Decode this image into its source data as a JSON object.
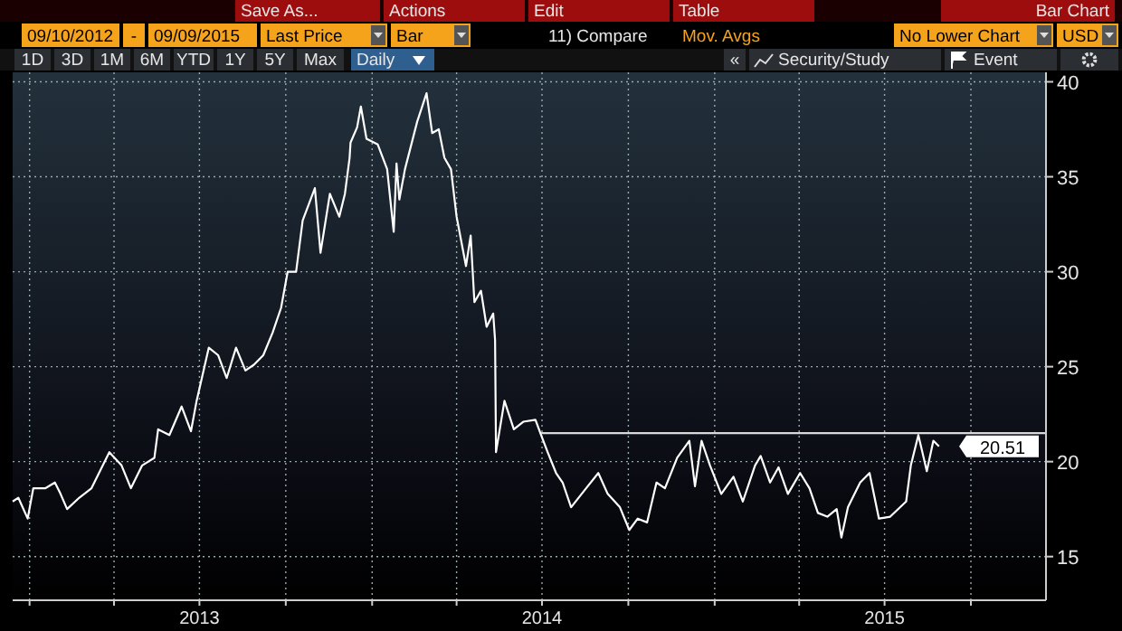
{
  "chart_data": {
    "type": "line",
    "xlim": [
      "2012-12-14",
      "2015-12-20"
    ],
    "ylim": [
      12.7,
      40.5
    ],
    "yticks": [
      15,
      20,
      25,
      30,
      35,
      40
    ],
    "xticks": [
      {
        "value": "2013-01-01",
        "label": null
      },
      {
        "value": "2013-04-01",
        "label": null
      },
      {
        "value": "2013-07-01",
        "label": "2013"
      },
      {
        "value": "2013-10-01",
        "label": null
      },
      {
        "value": "2014-01-01",
        "label": null
      },
      {
        "value": "2014-04-01",
        "label": null
      },
      {
        "value": "2014-07-01",
        "label": "2014"
      },
      {
        "value": "2014-10-01",
        "label": null
      },
      {
        "value": "2015-01-01",
        "label": null
      },
      {
        "value": "2015-04-01",
        "label": null
      },
      {
        "value": "2015-07-01",
        "label": "2015"
      },
      {
        "value": "2015-10-01",
        "label": null
      }
    ],
    "grid": true,
    "series": [
      {
        "color": "#ffffff",
        "x": [
          "2012-12-14",
          "2012-12-20",
          "2012-12-30",
          "2013-01-05",
          "2013-01-18",
          "2013-01-28",
          "2013-02-03",
          "2013-02-10",
          "2013-02-23",
          "2013-03-08",
          "2013-03-27",
          "2013-04-09",
          "2013-04-19",
          "2013-05-01",
          "2013-05-14",
          "2013-05-18",
          "2013-05-30",
          "2013-06-12",
          "2013-06-22",
          "2013-06-28",
          "2013-07-11",
          "2013-07-21",
          "2013-07-30",
          "2013-08-09",
          "2013-08-19",
          "2013-08-28",
          "2013-09-07",
          "2013-09-17",
          "2013-09-26",
          "2013-10-03",
          "2013-10-12",
          "2013-10-19",
          "2013-11-01",
          "2013-11-07",
          "2013-11-17",
          "2013-11-27",
          "2013-12-03",
          "2013-12-08",
          "2013-12-09",
          "2013-12-16",
          "2013-12-20",
          "2013-12-26",
          "2014-01-07",
          "2014-01-17",
          "2014-01-24",
          "2014-01-27",
          "2014-01-30",
          "2014-02-05",
          "2014-02-18",
          "2014-02-28",
          "2014-03-06",
          "2014-03-13",
          "2014-03-19",
          "2014-03-26",
          "2014-04-01",
          "2014-04-11",
          "2014-04-16",
          "2014-04-20",
          "2014-04-27",
          "2014-05-03",
          "2014-05-10",
          "2014-05-12",
          "2014-05-13",
          "2014-05-22",
          "2014-06-01",
          "2014-06-11",
          "2014-06-24",
          "2014-06-30",
          "2014-07-07",
          "2014-07-16",
          "2014-07-23",
          "2014-08-01",
          "2014-08-17",
          "2014-08-30",
          "2014-09-09",
          "2014-09-22",
          "2014-10-02",
          "2014-10-11",
          "2014-10-21",
          "2014-10-31",
          "2014-11-09",
          "2014-11-22",
          "2014-12-05",
          "2014-12-11",
          "2014-12-18",
          "2014-12-27",
          "2015-01-08",
          "2015-01-21",
          "2015-01-31",
          "2015-02-13",
          "2015-02-19",
          "2015-03-01",
          "2015-03-10",
          "2015-03-20",
          "2015-04-02",
          "2015-04-12",
          "2015-04-21",
          "2015-05-01",
          "2015-05-11",
          "2015-05-16",
          "2015-05-23",
          "2015-06-05",
          "2015-06-15",
          "2015-06-25",
          "2015-07-07",
          "2015-07-24",
          "2015-07-29",
          "2015-08-06",
          "2015-08-15",
          "2015-08-22",
          "2015-08-28"
        ],
        "values": [
          17.9,
          18.1,
          17.0,
          18.6,
          18.6,
          18.9,
          18.3,
          17.5,
          18.1,
          18.6,
          20.5,
          19.8,
          18.6,
          19.8,
          20.2,
          21.7,
          21.4,
          22.9,
          21.6,
          23.2,
          26.0,
          25.6,
          24.4,
          26.0,
          24.8,
          25.1,
          25.6,
          26.8,
          28.1,
          30.0,
          30.0,
          32.7,
          34.4,
          31.0,
          34.1,
          32.9,
          34.1,
          36.0,
          36.8,
          37.6,
          38.7,
          37.0,
          36.7,
          35.4,
          32.1,
          35.7,
          33.8,
          35.4,
          37.9,
          39.4,
          37.3,
          37.5,
          36.0,
          35.4,
          32.9,
          30.3,
          31.9,
          28.4,
          29.0,
          27.1,
          27.8,
          26.4,
          20.5,
          23.2,
          21.7,
          22.1,
          22.2,
          21.4,
          20.5,
          19.4,
          18.9,
          17.6,
          18.6,
          19.4,
          18.3,
          17.6,
          16.4,
          17.0,
          16.8,
          18.9,
          18.6,
          20.2,
          21.1,
          18.7,
          21.1,
          19.8,
          18.3,
          19.2,
          17.9,
          19.8,
          20.3,
          18.9,
          19.7,
          18.3,
          19.4,
          18.6,
          17.3,
          17.1,
          17.5,
          16.0,
          17.6,
          18.9,
          19.4,
          17.0,
          17.1,
          17.9,
          19.8,
          21.4,
          19.5,
          21.1,
          20.8
        ]
      },
      {
        "color": "#d9d9d9",
        "x": [
          "2014-06-30",
          "2015-12-20"
        ],
        "values": [
          21.5,
          21.5
        ]
      }
    ],
    "annotations": [
      "Save As...",
      "Actions",
      "Edit",
      "Table",
      "Bar Chart",
      "09/10/2012",
      "-",
      "09/09/2015",
      "Last Price",
      "Bar",
      "11) Compare",
      "Mov. Avgs",
      "No Lower Chart",
      "USD",
      "1D",
      "3D",
      "1M",
      "6M",
      "YTD",
      "1Y",
      "5Y",
      "Max",
      "Daily",
      "«",
      "Security/Study",
      "Event",
      "20.51"
    ]
  }
}
